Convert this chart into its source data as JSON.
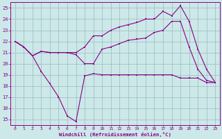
{
  "bg_color": "#cce8e8",
  "line_color": "#880088",
  "grid_color": "#99bbbb",
  "xlabel": "Windchill (Refroidissement éolien,°C)",
  "xlim": [
    -0.5,
    23.5
  ],
  "ylim": [
    14.5,
    25.5
  ],
  "yticks": [
    15,
    16,
    17,
    18,
    19,
    20,
    21,
    22,
    23,
    24,
    25
  ],
  "xticks": [
    0,
    1,
    2,
    3,
    4,
    5,
    6,
    7,
    8,
    9,
    10,
    11,
    12,
    13,
    14,
    15,
    16,
    17,
    18,
    19,
    20,
    21,
    22,
    23
  ],
  "series1_x": [
    0,
    1,
    2,
    3,
    4,
    5,
    6,
    7,
    8,
    9,
    10,
    11,
    12,
    13,
    14,
    15,
    16,
    17,
    18,
    19,
    20,
    21,
    22,
    23
  ],
  "series1_y": [
    22,
    21.5,
    20.7,
    21.1,
    21.0,
    21.0,
    21.0,
    20.8,
    20.0,
    20.0,
    21.3,
    21.5,
    21.8,
    22.1,
    22.2,
    22.3,
    22.8,
    23.0,
    23.8,
    23.8,
    21.5,
    19.5,
    18.5,
    18.3
  ],
  "series2_x": [
    0,
    1,
    2,
    3,
    4,
    5,
    6,
    7,
    8,
    9,
    10,
    11,
    12,
    13,
    14,
    15,
    16,
    17,
    18,
    19,
    20,
    21,
    22,
    23
  ],
  "series2_y": [
    22,
    21.5,
    20.7,
    19.3,
    18.2,
    17.0,
    15.3,
    14.8,
    18.9,
    19.1,
    19.0,
    19.0,
    19.0,
    19.0,
    19.0,
    19.0,
    19.0,
    19.0,
    19.0,
    18.7,
    18.7,
    18.7,
    18.3,
    18.3
  ],
  "series3_x": [
    0,
    1,
    2,
    3,
    4,
    5,
    6,
    7,
    8,
    9,
    10,
    11,
    12,
    13,
    14,
    15,
    16,
    17,
    18,
    19,
    20,
    21,
    22,
    23
  ],
  "series3_y": [
    22,
    21.5,
    20.7,
    21.1,
    21.0,
    21.0,
    21.0,
    21.0,
    21.5,
    22.5,
    22.5,
    23.0,
    23.3,
    23.5,
    23.7,
    24.0,
    24.0,
    24.7,
    24.3,
    25.2,
    23.8,
    21.3,
    19.5,
    18.3
  ]
}
